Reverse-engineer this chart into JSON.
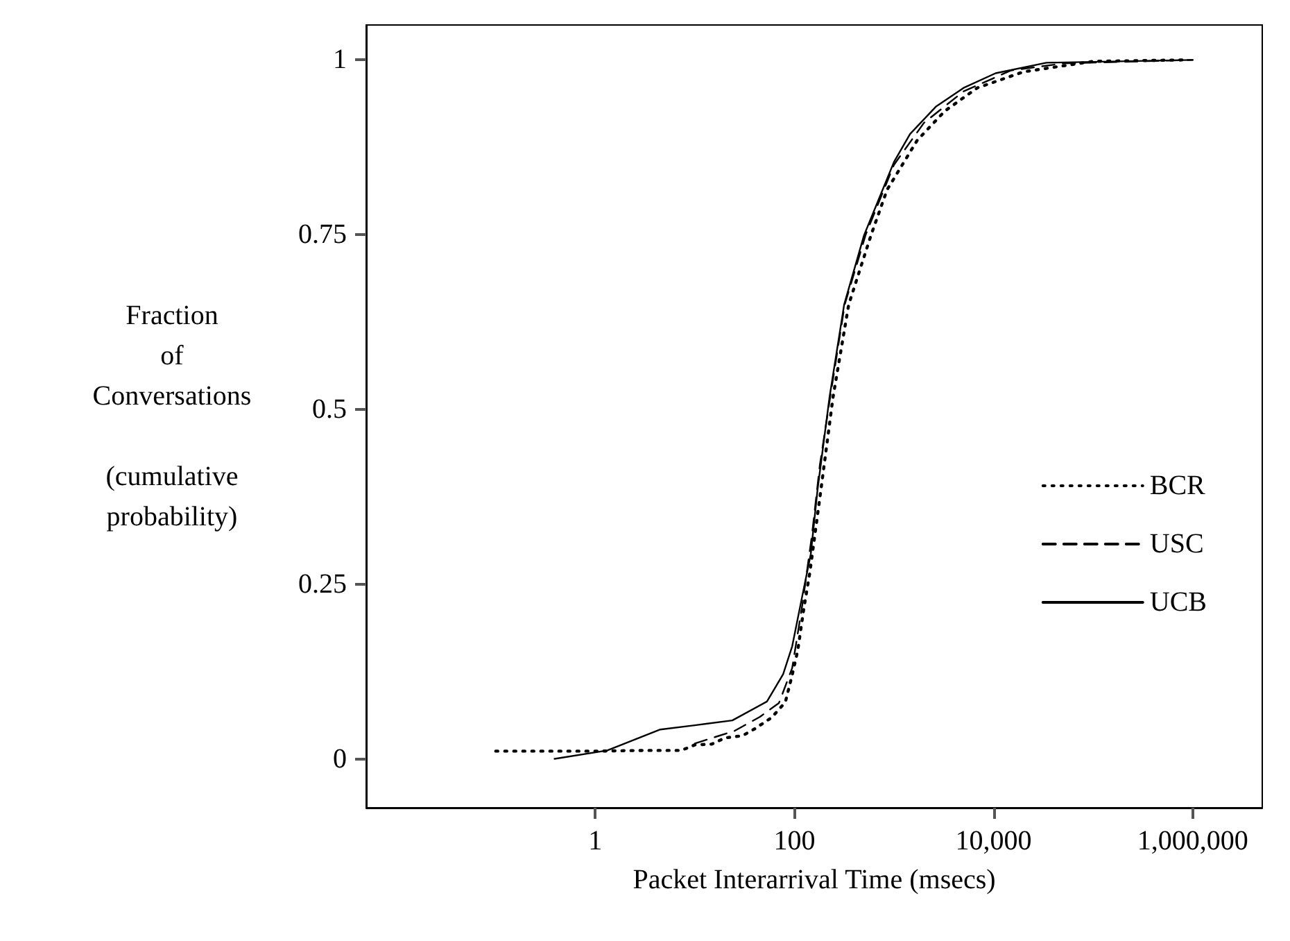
{
  "chart_data": {
    "type": "line",
    "xlabel": "Packet Interarrival Time (msecs)",
    "ylabel": "Fraction\nof\nConversations\n\n(cumulative\nprobability)",
    "log": "x",
    "grid": false,
    "legend": "bottom right",
    "marker": "none",
    "xlim": [
      0.005,
      5000000
    ],
    "ylim": [
      -0.07,
      1.05
    ],
    "xticks": [
      {
        "value": 1,
        "label": "1"
      },
      {
        "value": 100,
        "label": "100"
      },
      {
        "value": 10000,
        "label": "10,000"
      },
      {
        "value": 1000000,
        "label": "1,000,000"
      }
    ],
    "yticks": [
      0,
      0.25,
      0.5,
      0.75,
      1
    ],
    "series": [
      {
        "name": "BCR",
        "color": "#000000",
        "line_style": "dotted",
        "x": [
          0.1,
          1,
          3,
          7.3,
          10,
          14.8,
          20,
          30,
          40,
          59,
          81,
          95,
          108,
          124,
          143,
          185,
          244,
          351,
          587,
          851,
          1711,
          3250,
          6870,
          20000,
          100000,
          800000
        ],
        "values": [
          0.011,
          0.011,
          0.012,
          0.012,
          0.02,
          0.021,
          0.03,
          0.033,
          0.043,
          0.059,
          0.081,
          0.12,
          0.155,
          0.214,
          0.267,
          0.386,
          0.517,
          0.65,
          0.749,
          0.814,
          0.885,
          0.927,
          0.96,
          0.983,
          0.998,
          1
        ]
      },
      {
        "name": "USC",
        "color": "#000000",
        "line_style": "dashed",
        "x": [
          10,
          25,
          45,
          70,
          95,
          120,
          150,
          180,
          230,
          320,
          520,
          1000,
          2000,
          5000,
          15000,
          50000,
          1000000
        ],
        "values": [
          0.022,
          0.04,
          0.06,
          0.08,
          0.13,
          0.22,
          0.32,
          0.42,
          0.52,
          0.65,
          0.75,
          0.85,
          0.91,
          0.955,
          0.985,
          0.995,
          1
        ]
      },
      {
        "name": "UCB",
        "color": "#000000",
        "line_style": "solid",
        "x": [
          0.39,
          1.32,
          4.5,
          10,
          23.8,
          53,
          77,
          95,
          118,
          146,
          171,
          225,
          316,
          500,
          1000,
          1450,
          2630,
          5000,
          10500,
          34000,
          1000000
        ],
        "values": [
          0,
          0.012,
          0.042,
          0.048,
          0.055,
          0.082,
          0.121,
          0.161,
          0.228,
          0.293,
          0.386,
          0.517,
          0.65,
          0.749,
          0.854,
          0.894,
          0.933,
          0.96,
          0.981,
          0.996,
          1
        ]
      }
    ]
  }
}
